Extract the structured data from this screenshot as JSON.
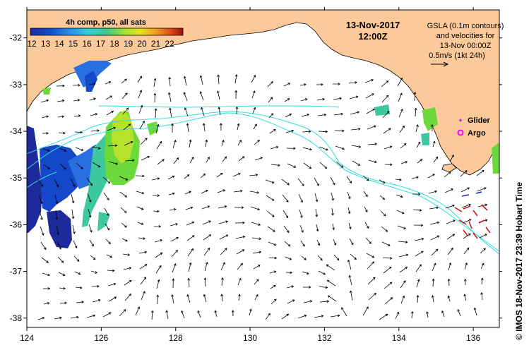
{
  "colorbar": {
    "title": "4h comp, p50, all sats",
    "ticks": [
      "12",
      "13",
      "14",
      "15",
      "16",
      "17",
      "18",
      "19",
      "20",
      "21",
      "22"
    ]
  },
  "date": "13-Nov-2017",
  "time": "12:00Z",
  "legend_text": {
    "line1": "GSLA (0.1m contours)",
    "line2": "and velocities for",
    "line3": "13-Nov 00:00Z",
    "line4": "0.5m/s (1kt 24h)"
  },
  "markers": {
    "glider_label": "Glider",
    "argo_label": "Argo",
    "glider_color": "#cc33cc",
    "argo_color": "#ff00ff"
  },
  "credit": "© IMOS 18-Nov-2017 23:39 Hobart Time",
  "axes": {
    "x_ticks": [
      "124",
      "126",
      "128",
      "130",
      "132",
      "134",
      "136"
    ],
    "y_ticks": [
      "-32",
      "-33",
      "-34",
      "-35",
      "-36",
      "-37",
      "-38"
    ],
    "lon_range": [
      124,
      136.7
    ],
    "lat_range": [
      -38.2,
      -31.4
    ]
  },
  "colors": {
    "land": "#fcc99a",
    "contour": "#33dddd",
    "vector": "#000000"
  }
}
